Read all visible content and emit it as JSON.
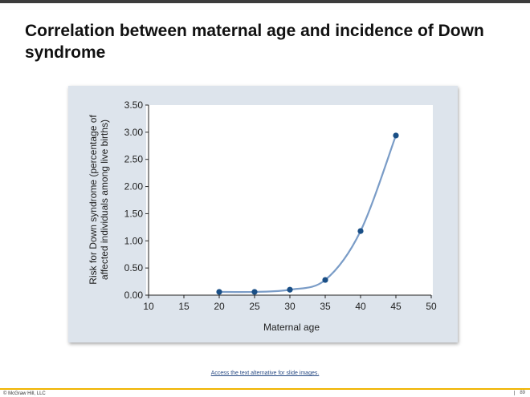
{
  "slide": {
    "title": "Correlation between maternal age and incidence of Down syndrome",
    "alt_text_link": "Access the text alternative for slide images.",
    "copyright": "© McGraw Hill, LLC",
    "page_number": "89"
  },
  "chart_data": {
    "type": "line",
    "title": "",
    "xlabel": "Maternal age",
    "ylabel_lines": [
      "Risk for Down syndrome (percentage of",
      "affected individuals among live births)"
    ],
    "xlim": [
      10,
      50
    ],
    "ylim": [
      0,
      3.5
    ],
    "x_ticks": [
      10,
      15,
      20,
      25,
      30,
      35,
      40,
      45,
      50
    ],
    "y_ticks": [
      "0.00",
      "0.50",
      "1.00",
      "1.50",
      "2.00",
      "2.50",
      "3.00",
      "3.50"
    ],
    "grid": false,
    "series": [
      {
        "x": [
          20,
          25,
          30,
          35,
          40,
          45
        ],
        "y": [
          0.06,
          0.06,
          0.1,
          0.28,
          1.18,
          2.94
        ],
        "line_color": "#7a9cc7",
        "marker_color": "#1a4f86"
      }
    ]
  }
}
